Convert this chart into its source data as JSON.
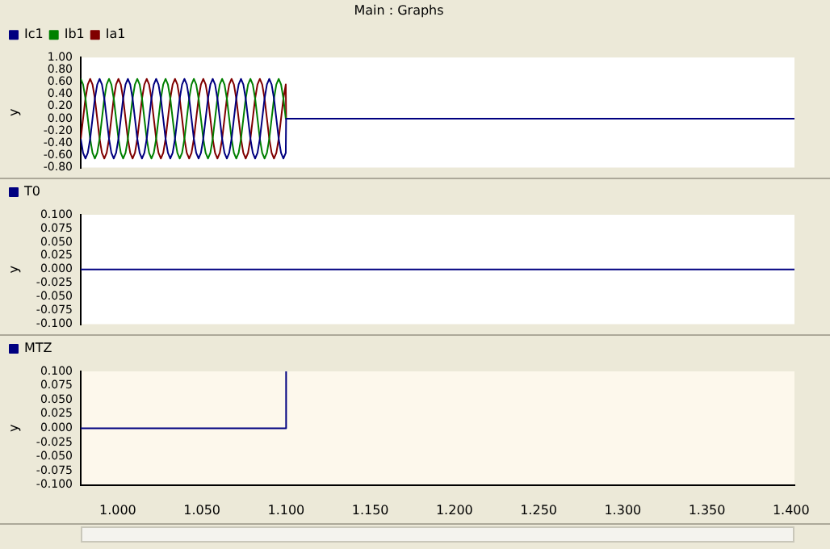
{
  "chart_data": [
    {
      "type": "line",
      "title": "Main : Graphs",
      "ylabel": "y",
      "legend": "top left",
      "tick_labels": "y",
      "xlim": [
        0.978,
        1.402
      ],
      "ylim": [
        -0.8,
        1.0
      ],
      "yticks": [
        {
          "value": -0.8,
          "label": "-0.80"
        },
        {
          "value": -0.6,
          "label": "-0.60"
        },
        {
          "value": -0.4,
          "label": "-0.40"
        },
        {
          "value": -0.2,
          "label": "-0.20"
        },
        {
          "value": 0,
          "label": "0.00"
        },
        {
          "value": 0.2,
          "label": "0.20"
        },
        {
          "value": 0.4,
          "label": "0.40"
        },
        {
          "value": 0.6,
          "label": "0.60"
        },
        {
          "value": 0.8,
          "label": "0.80"
        },
        {
          "value": 1.0,
          "label": "1.00"
        }
      ],
      "x": [
        0.978,
        0.9794,
        0.9808,
        0.9822,
        0.9836,
        0.985,
        0.9864,
        0.9878,
        0.9892,
        0.9906,
        0.992,
        0.9934,
        0.9948,
        0.9962,
        0.9976,
        0.999,
        1.0004,
        1.0018,
        1.0032,
        1.0046,
        1.006,
        1.0074,
        1.0088,
        1.0102,
        1.0116,
        1.013,
        1.0144,
        1.0158,
        1.0172,
        1.0186,
        1.02,
        1.0214,
        1.0228,
        1.0242,
        1.0256,
        1.027,
        1.0284,
        1.0298,
        1.0312,
        1.0326,
        1.034,
        1.0354,
        1.0368,
        1.0382,
        1.0396,
        1.041,
        1.0424,
        1.0438,
        1.0452,
        1.0466,
        1.048,
        1.0494,
        1.0508,
        1.0522,
        1.0536,
        1.055,
        1.0564,
        1.0578,
        1.0592,
        1.0606,
        1.062,
        1.0634,
        1.0648,
        1.0662,
        1.0676,
        1.069,
        1.0704,
        1.0718,
        1.0732,
        1.0746,
        1.076,
        1.0774,
        1.0788,
        1.0802,
        1.0816,
        1.083,
        1.0844,
        1.0858,
        1.0872,
        1.0886,
        1.09,
        1.0914,
        1.0928,
        1.0942,
        1.0956,
        1.097,
        1.0984,
        1.0998,
        1.1,
        1.402
      ],
      "series": [
        {
          "name": "Ic1",
          "color": "#000080",
          "values": [
            -0.33,
            -0.56,
            -0.65,
            -0.56,
            -0.33,
            0,
            0.33,
            0.56,
            0.65,
            0.56,
            0.33,
            0,
            -0.33,
            -0.56,
            -0.65,
            -0.56,
            -0.33,
            0,
            0.33,
            0.56,
            0.65,
            0.56,
            0.33,
            0,
            -0.33,
            -0.56,
            -0.65,
            -0.56,
            -0.33,
            0,
            0.33,
            0.56,
            0.65,
            0.56,
            0.33,
            0,
            -0.33,
            -0.56,
            -0.65,
            -0.56,
            -0.33,
            0,
            0.33,
            0.56,
            0.65,
            0.56,
            0.33,
            0,
            -0.33,
            -0.56,
            -0.65,
            -0.56,
            -0.33,
            0,
            0.33,
            0.56,
            0.65,
            0.56,
            0.33,
            0,
            -0.33,
            -0.56,
            -0.65,
            -0.56,
            -0.33,
            0,
            0.33,
            0.56,
            0.65,
            0.56,
            0.33,
            0,
            -0.33,
            -0.56,
            -0.65,
            -0.56,
            -0.33,
            0,
            0.33,
            0.56,
            0.65,
            0.56,
            0.33,
            0,
            -0.33,
            -0.56,
            -0.65,
            -0.56,
            0,
            0
          ]
        },
        {
          "name": "Ib1",
          "color": "#008000",
          "values": [
            0.65,
            0.56,
            0.33,
            0,
            -0.33,
            -0.56,
            -0.65,
            -0.56,
            -0.33,
            0,
            0.33,
            0.56,
            0.65,
            0.56,
            0.33,
            0,
            -0.33,
            -0.56,
            -0.65,
            -0.56,
            -0.33,
            0,
            0.33,
            0.56,
            0.65,
            0.56,
            0.33,
            0,
            -0.33,
            -0.56,
            -0.65,
            -0.56,
            -0.33,
            0,
            0.33,
            0.56,
            0.65,
            0.56,
            0.33,
            0,
            -0.33,
            -0.56,
            -0.65,
            -0.56,
            -0.33,
            0,
            0.33,
            0.56,
            0.65,
            0.56,
            0.33,
            0,
            -0.33,
            -0.56,
            -0.65,
            -0.56,
            -0.33,
            0,
            0.33,
            0.56,
            0.65,
            0.56,
            0.33,
            0,
            -0.33,
            -0.56,
            -0.65,
            -0.56,
            -0.33,
            0,
            0.33,
            0.56,
            0.65,
            0.56,
            0.33,
            0,
            -0.33,
            -0.56,
            -0.65,
            -0.56,
            -0.33,
            0,
            0.33,
            0.56,
            0.65,
            0.56,
            0.33,
            0,
            0,
            0
          ]
        },
        {
          "name": "Ia1",
          "color": "#800000",
          "values": [
            -0.33,
            0,
            0.33,
            0.56,
            0.65,
            0.56,
            0.33,
            0,
            -0.33,
            -0.56,
            -0.65,
            -0.56,
            -0.33,
            0,
            0.33,
            0.56,
            0.65,
            0.56,
            0.33,
            0,
            -0.33,
            -0.56,
            -0.65,
            -0.56,
            -0.33,
            0,
            0.33,
            0.56,
            0.65,
            0.56,
            0.33,
            0,
            -0.33,
            -0.56,
            -0.65,
            -0.56,
            -0.33,
            0,
            0.33,
            0.56,
            0.65,
            0.56,
            0.33,
            0,
            -0.33,
            -0.56,
            -0.65,
            -0.56,
            -0.33,
            0,
            0.33,
            0.56,
            0.65,
            0.56,
            0.33,
            0,
            -0.33,
            -0.56,
            -0.65,
            -0.56,
            -0.33,
            0,
            0.33,
            0.56,
            0.65,
            0.56,
            0.33,
            0,
            -0.33,
            -0.56,
            -0.65,
            -0.56,
            -0.33,
            0,
            0.33,
            0.56,
            0.65,
            0.56,
            0.33,
            0,
            -0.33,
            -0.56,
            -0.65,
            -0.56,
            -0.33,
            0,
            0.33,
            0.56,
            0,
            0
          ]
        }
      ]
    },
    {
      "type": "line",
      "ylabel": "y",
      "legend": "top left",
      "tick_labels": "y",
      "xlim": [
        0.978,
        1.402
      ],
      "ylim": [
        -0.1,
        0.1
      ],
      "yticks": [
        {
          "value": -0.1,
          "label": "-0.100"
        },
        {
          "value": -0.075,
          "label": "-0.075"
        },
        {
          "value": -0.05,
          "label": "-0.050"
        },
        {
          "value": -0.025,
          "label": "-0.025"
        },
        {
          "value": 0,
          "label": "0.000"
        },
        {
          "value": 0.025,
          "label": "0.025"
        },
        {
          "value": 0.05,
          "label": "0.050"
        },
        {
          "value": 0.075,
          "label": "0.075"
        },
        {
          "value": 0.1,
          "label": "0.100"
        }
      ],
      "x": [
        0.978,
        1.402
      ],
      "series": [
        {
          "name": "T0",
          "color": "#000080",
          "values": [
            0,
            0
          ]
        }
      ]
    },
    {
      "type": "line",
      "ylabel": "y",
      "legend": "top left",
      "xlim": [
        0.978,
        1.402
      ],
      "xticks": [
        {
          "value": 1.0,
          "label": "1.000"
        },
        {
          "value": 1.05,
          "label": "1.050"
        },
        {
          "value": 1.1,
          "label": "1.100"
        },
        {
          "value": 1.15,
          "label": "1.150"
        },
        {
          "value": 1.2,
          "label": "1.200"
        },
        {
          "value": 1.25,
          "label": "1.250"
        },
        {
          "value": 1.3,
          "label": "1.300"
        },
        {
          "value": 1.35,
          "label": "1.350"
        },
        {
          "value": 1.4,
          "label": "1.400"
        }
      ],
      "ylim": [
        -0.1,
        0.1
      ],
      "yticks": [
        {
          "value": -0.1,
          "label": "-0.100"
        },
        {
          "value": -0.075,
          "label": "-0.075"
        },
        {
          "value": -0.05,
          "label": "-0.050"
        },
        {
          "value": -0.025,
          "label": "-0.025"
        },
        {
          "value": 0,
          "label": "0.000"
        },
        {
          "value": 0.025,
          "label": "0.025"
        },
        {
          "value": 0.05,
          "label": "0.050"
        },
        {
          "value": 0.075,
          "label": "0.075"
        },
        {
          "value": 0.1,
          "label": "0.100"
        }
      ],
      "x": [
        0.978,
        1.1,
        1.1
      ],
      "series": [
        {
          "name": "MTZ",
          "color": "#000080",
          "values": [
            0,
            0,
            0.1
          ]
        }
      ]
    }
  ]
}
